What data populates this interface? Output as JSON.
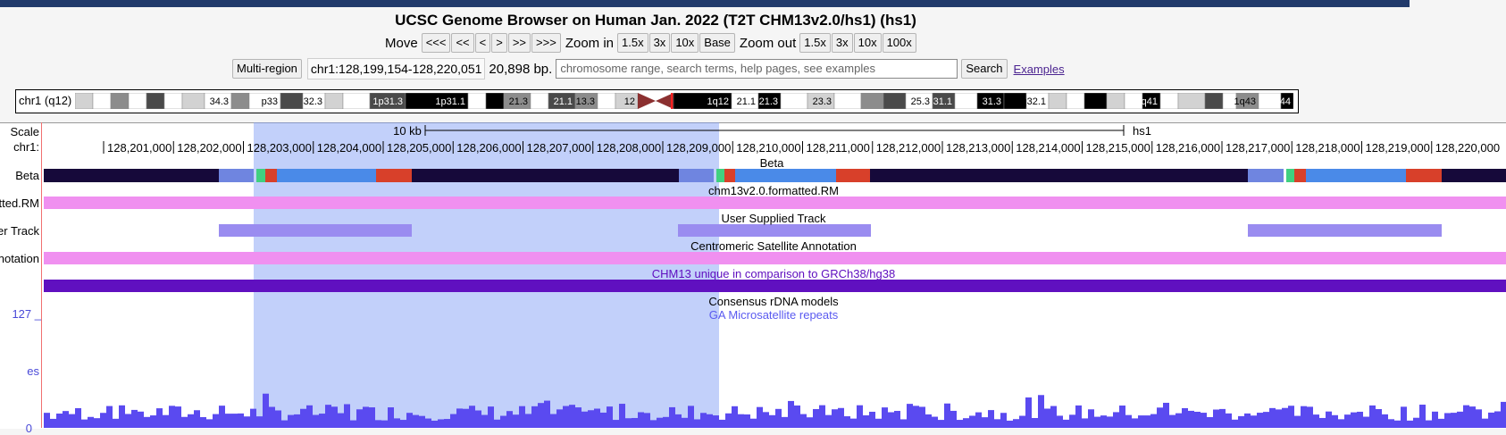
{
  "title": "UCSC Genome Browser on Human Jan. 2022 (T2T CHM13v2.0/hs1) (hs1)",
  "nav": {
    "move_label": "Move",
    "move_buttons": [
      "<<<",
      "<<",
      "<",
      ">",
      ">>",
      ">>>"
    ],
    "zoom_in_label": "Zoom in",
    "zoom_in_buttons": [
      "1.5x",
      "3x",
      "10x",
      "Base"
    ],
    "zoom_out_label": "Zoom out",
    "zoom_out_buttons": [
      "1.5x",
      "3x",
      "10x",
      "100x"
    ]
  },
  "search": {
    "multi_region_label": "Multi-region",
    "position": "chr1:128,199,154-128,220,051",
    "size": "20,898 bp.",
    "placeholder": "chromosome range, search terms, help pages, see examples",
    "search_label": "Search",
    "examples_label": "Examples"
  },
  "ideogram": {
    "label": "chr1 (q12)",
    "bands": [
      "34.3",
      "p33",
      "32.3",
      "1p31.3",
      "1p31.1",
      "21.3",
      "21.1",
      "13.3",
      "12",
      "1q12",
      "21.1",
      "21.3",
      "23.3",
      "25.3",
      "31.1",
      "31.3",
      "1q32.1",
      "1q41",
      "1q43",
      "1q44"
    ]
  },
  "ruler": {
    "scale_label": "Scale",
    "chrom_label": "chr1:",
    "scale_text": "10 kb",
    "assembly": "hs1",
    "ticks": [
      "128,201,000",
      "128,202,000",
      "128,203,000",
      "128,204,000",
      "128,205,000",
      "128,206,000",
      "128,207,000",
      "128,208,000",
      "128,209,000",
      "128,210,000",
      "128,211,000",
      "128,212,000",
      "128,213,000",
      "128,214,000",
      "128,215,000",
      "128,216,000",
      "128,217,000",
      "128,218,000",
      "128,219,000",
      "128,220,000"
    ]
  },
  "tracks": {
    "beta": {
      "side": "Beta",
      "center": "Beta"
    },
    "rm": {
      "side": "tted.RM",
      "center": "chm13v2.0.formatted.RM"
    },
    "user": {
      "side": "er Track",
      "center": "User Supplied Track"
    },
    "censat": {
      "side": "notation",
      "center": "Centromeric Satellite Annotation"
    },
    "unique": {
      "center": "CHM13 unique in comparison to GRCh38/hg38"
    },
    "rdna": {
      "center": "Consensus rDNA models"
    },
    "ga": {
      "center": "GA Microsatellite repeats",
      "side_top": "127 _",
      "side_mid": "es",
      "side_bottom": "0"
    }
  },
  "colors": {
    "beta_dark": "#16093a",
    "beta_light": "#6f85e0",
    "beta_blue": "#4a8ae8",
    "beta_red": "#d8402a",
    "beta_green": "#40d080",
    "rm_pink": "#f090f0",
    "user_purple": "#9a8cf0",
    "unique_purple": "#6010c0",
    "ga_blue": "#5a4af0",
    "highlight": "#b4c3fa"
  }
}
